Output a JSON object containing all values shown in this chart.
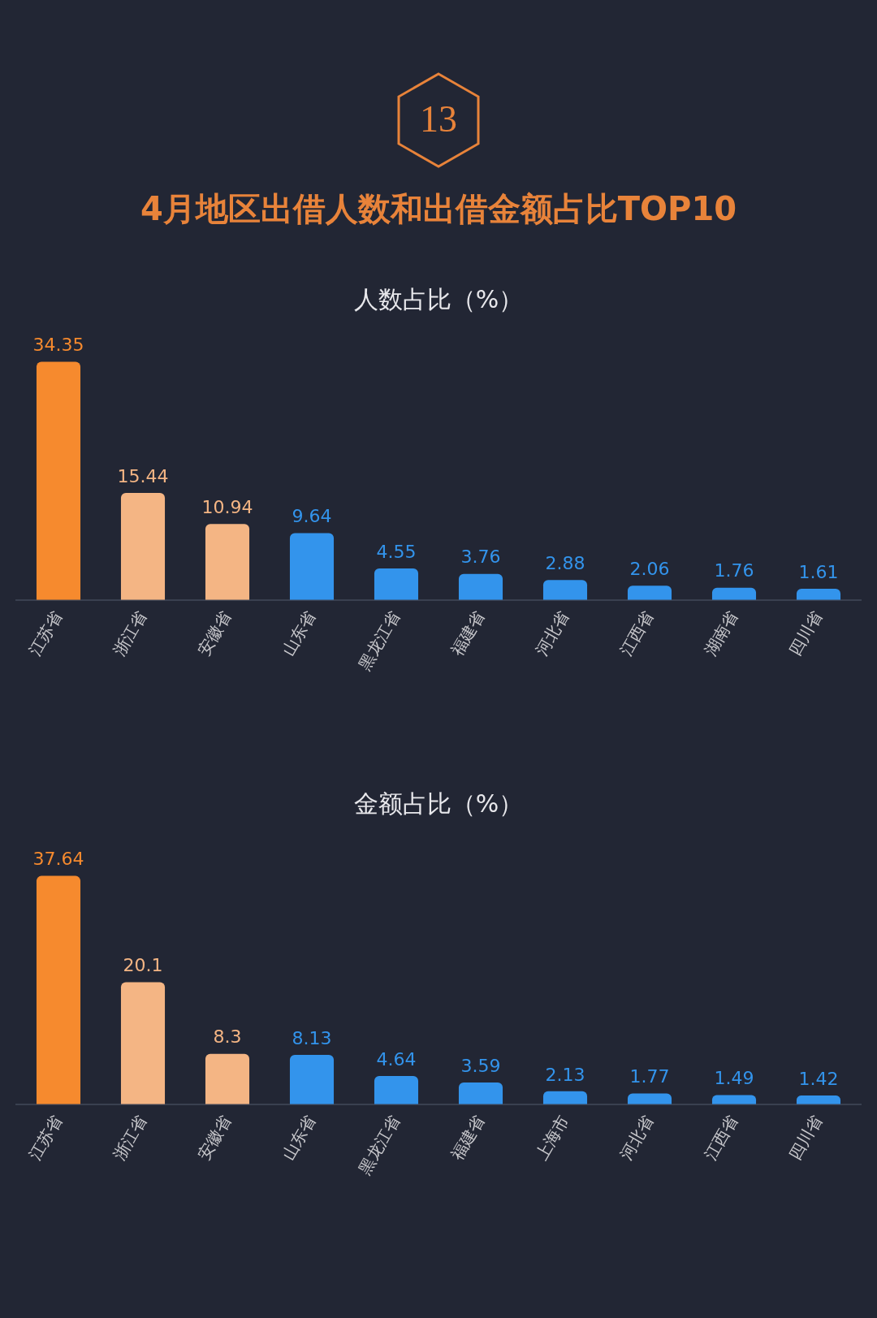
{
  "chart_data": [
    {
      "type": "bar",
      "title": "4月地区出借人数和出借金额占比TOP10",
      "subtitle": "人数占比（%）",
      "annotations": [
        "13"
      ],
      "categories": [
        "江苏省",
        "浙江省",
        "安徽省",
        "山东省",
        "黑龙江省",
        "福建省",
        "河北省",
        "江西省",
        "湖南省",
        "四川省"
      ],
      "values": [
        34.35,
        15.44,
        10.94,
        9.64,
        4.55,
        3.76,
        2.88,
        2.06,
        1.76,
        1.61
      ],
      "colors": [
        "#f68a2e",
        "#f4b584",
        "#f4b584",
        "#3394ec",
        "#3394ec",
        "#3394ec",
        "#3394ec",
        "#3394ec",
        "#3394ec",
        "#3394ec"
      ],
      "data_labels": true,
      "grid": false,
      "legend": false
    },
    {
      "type": "bar",
      "subtitle": "金额占比（%）",
      "categories": [
        "江苏省",
        "浙江省",
        "安徽省",
        "山东省",
        "黑龙江省",
        "福建省",
        "上海市",
        "河北省",
        "江西省",
        "四川省"
      ],
      "values": [
        37.64,
        20.1,
        8.3,
        8.13,
        4.64,
        3.59,
        2.13,
        1.77,
        1.49,
        1.42
      ],
      "colors": [
        "#f68a2e",
        "#f4b584",
        "#f4b584",
        "#3394ec",
        "#3394ec",
        "#3394ec",
        "#3394ec",
        "#3394ec",
        "#3394ec",
        "#3394ec"
      ],
      "data_labels": true,
      "grid": false,
      "legend": false
    }
  ]
}
